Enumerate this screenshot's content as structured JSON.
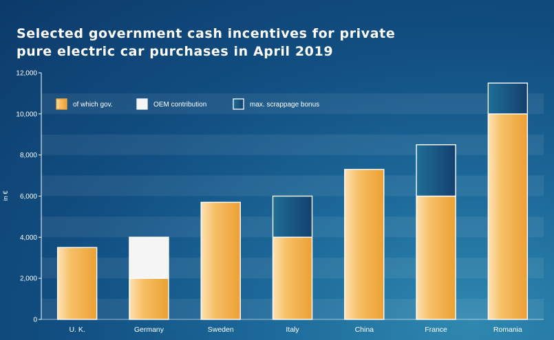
{
  "title_line1": "Selected government cash incentives for private",
  "title_line2": "pure electric car purchases in April 2019",
  "colors": {
    "gov": "#f0a93c",
    "oem": "#f5f5f5",
    "scrappage": "#15507e",
    "bar_edge": "#ffffff"
  },
  "chart_data": {
    "type": "bar",
    "stacked": true,
    "categories": [
      "U. K.",
      "Germany",
      "Sweden",
      "Italy",
      "China",
      "France",
      "Romania"
    ],
    "series": [
      {
        "name": "of which gov.",
        "values": [
          3500,
          2000,
          5700,
          4000,
          7300,
          6000,
          10000
        ]
      },
      {
        "name": "OEM contribution",
        "values": [
          0,
          2000,
          0,
          0,
          0,
          0,
          0
        ]
      },
      {
        "name": "max. scrappage bonus",
        "values": [
          0,
          0,
          0,
          2000,
          0,
          2500,
          1500
        ]
      }
    ],
    "ylabel": "in €",
    "ylim": [
      0,
      12000
    ],
    "yticks": [
      0,
      2000,
      4000,
      6000,
      8000,
      10000,
      12000
    ],
    "ytick_labels": [
      "0",
      "2,000",
      "4,000",
      "6,000",
      "8,000",
      "10,000",
      "12,000"
    ],
    "legend_position": "top-left",
    "grid": true
  }
}
